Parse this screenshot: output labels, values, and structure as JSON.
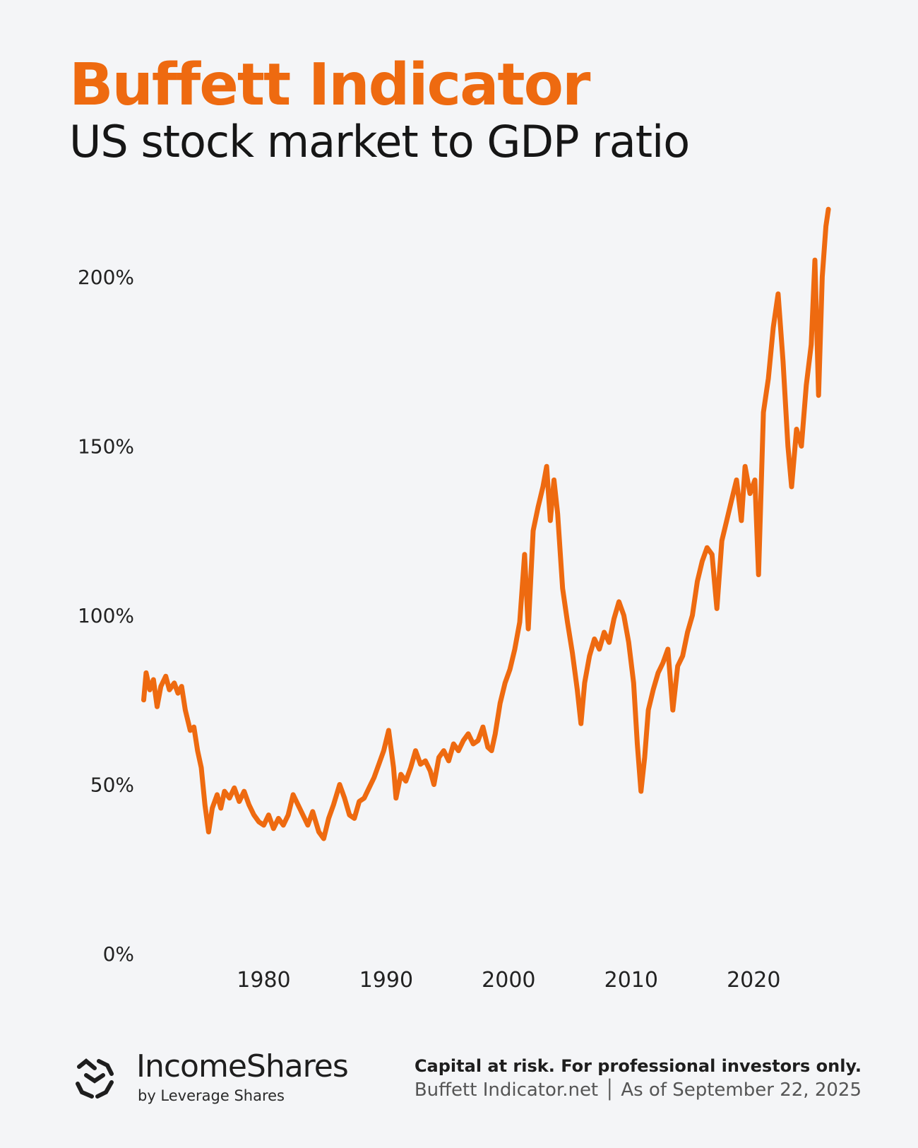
{
  "header": {
    "title": "Buffett Indicator",
    "subtitle": "US stock market to GDP ratio"
  },
  "colors": {
    "accent": "#ee6a10",
    "text": "#161616",
    "background": "#f4f5f7"
  },
  "chart_data": {
    "type": "line",
    "title": "Buffett Indicator",
    "subtitle": "US stock market to GDP ratio",
    "xlabel": "",
    "ylabel": "",
    "x_ticks": [
      "1980",
      "1990",
      "2000",
      "2010",
      "2020"
    ],
    "y_ticks": [
      "0%",
      "50%",
      "100%",
      "150%",
      "200%"
    ],
    "xlim": [
      1970,
      2026.5
    ],
    "ylim": [
      0,
      220
    ],
    "grid": false,
    "legend": "none",
    "series": [
      {
        "color": "#ee6a10",
        "points": [
          [
            1970.2,
            75
          ],
          [
            1970.4,
            83
          ],
          [
            1970.7,
            78
          ],
          [
            1971.0,
            81
          ],
          [
            1971.3,
            73
          ],
          [
            1971.6,
            79
          ],
          [
            1972.0,
            82
          ],
          [
            1972.3,
            78
          ],
          [
            1972.7,
            80
          ],
          [
            1973.0,
            77
          ],
          [
            1973.3,
            79
          ],
          [
            1973.6,
            72
          ],
          [
            1974.0,
            66
          ],
          [
            1974.3,
            67
          ],
          [
            1974.6,
            60
          ],
          [
            1974.9,
            55
          ],
          [
            1975.2,
            44
          ],
          [
            1975.5,
            36
          ],
          [
            1975.8,
            43
          ],
          [
            1976.2,
            47
          ],
          [
            1976.5,
            43
          ],
          [
            1976.8,
            48
          ],
          [
            1977.2,
            46
          ],
          [
            1977.6,
            49
          ],
          [
            1978.0,
            45
          ],
          [
            1978.4,
            48
          ],
          [
            1978.8,
            44
          ],
          [
            1979.2,
            41
          ],
          [
            1979.6,
            39
          ],
          [
            1980.0,
            38
          ],
          [
            1980.4,
            41
          ],
          [
            1980.8,
            37
          ],
          [
            1981.2,
            40
          ],
          [
            1981.6,
            38
          ],
          [
            1982.0,
            41
          ],
          [
            1982.4,
            47
          ],
          [
            1982.8,
            44
          ],
          [
            1983.2,
            41
          ],
          [
            1983.6,
            38
          ],
          [
            1984.0,
            42
          ],
          [
            1984.5,
            36
          ],
          [
            1984.9,
            34
          ],
          [
            1985.3,
            40
          ],
          [
            1985.7,
            44
          ],
          [
            1986.2,
            50
          ],
          [
            1986.6,
            46
          ],
          [
            1987.0,
            41
          ],
          [
            1987.4,
            40
          ],
          [
            1987.8,
            45
          ],
          [
            1988.2,
            46
          ],
          [
            1988.6,
            49
          ],
          [
            1989.0,
            52
          ],
          [
            1989.4,
            56
          ],
          [
            1989.8,
            60
          ],
          [
            1990.2,
            66
          ],
          [
            1990.6,
            55
          ],
          [
            1990.8,
            46
          ],
          [
            1991.2,
            53
          ],
          [
            1991.6,
            51
          ],
          [
            1992.0,
            55
          ],
          [
            1992.4,
            60
          ],
          [
            1992.8,
            56
          ],
          [
            1993.2,
            57
          ],
          [
            1993.6,
            54
          ],
          [
            1993.9,
            50
          ],
          [
            1994.3,
            58
          ],
          [
            1994.7,
            60
          ],
          [
            1995.1,
            57
          ],
          [
            1995.5,
            62
          ],
          [
            1995.9,
            60
          ],
          [
            1996.3,
            63
          ],
          [
            1996.7,
            65
          ],
          [
            1997.1,
            62
          ],
          [
            1997.5,
            63
          ],
          [
            1997.9,
            67
          ],
          [
            1998.3,
            61
          ],
          [
            1998.6,
            60
          ],
          [
            1998.9,
            65
          ],
          [
            1999.3,
            74
          ],
          [
            1999.7,
            80
          ],
          [
            2000.1,
            84
          ],
          [
            2000.5,
            90
          ],
          [
            2000.9,
            98
          ],
          [
            2001.3,
            118
          ],
          [
            2001.6,
            96
          ],
          [
            2002.0,
            125
          ],
          [
            2002.4,
            132
          ],
          [
            2002.8,
            138
          ],
          [
            2003.1,
            144
          ],
          [
            2003.4,
            128
          ],
          [
            2003.7,
            140
          ],
          [
            2004.0,
            130
          ],
          [
            2004.4,
            108
          ],
          [
            2004.8,
            98
          ],
          [
            2005.2,
            89
          ],
          [
            2005.6,
            78
          ],
          [
            2005.9,
            68
          ],
          [
            2006.2,
            80
          ],
          [
            2006.6,
            88
          ],
          [
            2007.0,
            93
          ],
          [
            2007.4,
            90
          ],
          [
            2007.8,
            95
          ],
          [
            2008.2,
            92
          ],
          [
            2008.6,
            99
          ],
          [
            2009.0,
            104
          ],
          [
            2009.4,
            100
          ],
          [
            2009.8,
            92
          ],
          [
            2010.2,
            80
          ],
          [
            2010.5,
            62
          ],
          [
            2010.8,
            48
          ],
          [
            2011.1,
            58
          ],
          [
            2011.4,
            72
          ],
          [
            2011.8,
            78
          ],
          [
            2012.2,
            83
          ],
          [
            2012.6,
            86
          ],
          [
            2013.0,
            90
          ],
          [
            2013.4,
            72
          ],
          [
            2013.8,
            85
          ],
          [
            2014.2,
            88
          ],
          [
            2014.6,
            95
          ],
          [
            2015.0,
            100
          ],
          [
            2015.4,
            110
          ],
          [
            2015.8,
            116
          ],
          [
            2016.2,
            120
          ],
          [
            2016.6,
            118
          ],
          [
            2017.0,
            102
          ],
          [
            2017.4,
            122
          ],
          [
            2017.8,
            128
          ],
          [
            2018.2,
            134
          ],
          [
            2018.6,
            140
          ],
          [
            2019.0,
            128
          ],
          [
            2019.3,
            144
          ],
          [
            2019.7,
            136
          ],
          [
            2020.1,
            140
          ],
          [
            2020.4,
            112
          ],
          [
            2020.8,
            160
          ],
          [
            2021.2,
            170
          ],
          [
            2021.6,
            185
          ],
          [
            2022.0,
            195
          ],
          [
            2022.4,
            175
          ],
          [
            2022.8,
            150
          ],
          [
            2023.1,
            138
          ],
          [
            2023.5,
            155
          ],
          [
            2023.9,
            150
          ],
          [
            2024.3,
            168
          ],
          [
            2024.7,
            180
          ],
          [
            2025.0,
            205
          ],
          [
            2025.3,
            165
          ],
          [
            2025.6,
            200
          ],
          [
            2025.9,
            215
          ],
          [
            2026.1,
            220
          ]
        ]
      }
    ]
  },
  "footer": {
    "brand_name": "IncomeShares",
    "brand_tagline": "by Leverage Shares",
    "disclaimer": "Capital at risk. For professional investors only.",
    "source": "Buffett Indicator.net │ As of September 22, 2025"
  }
}
